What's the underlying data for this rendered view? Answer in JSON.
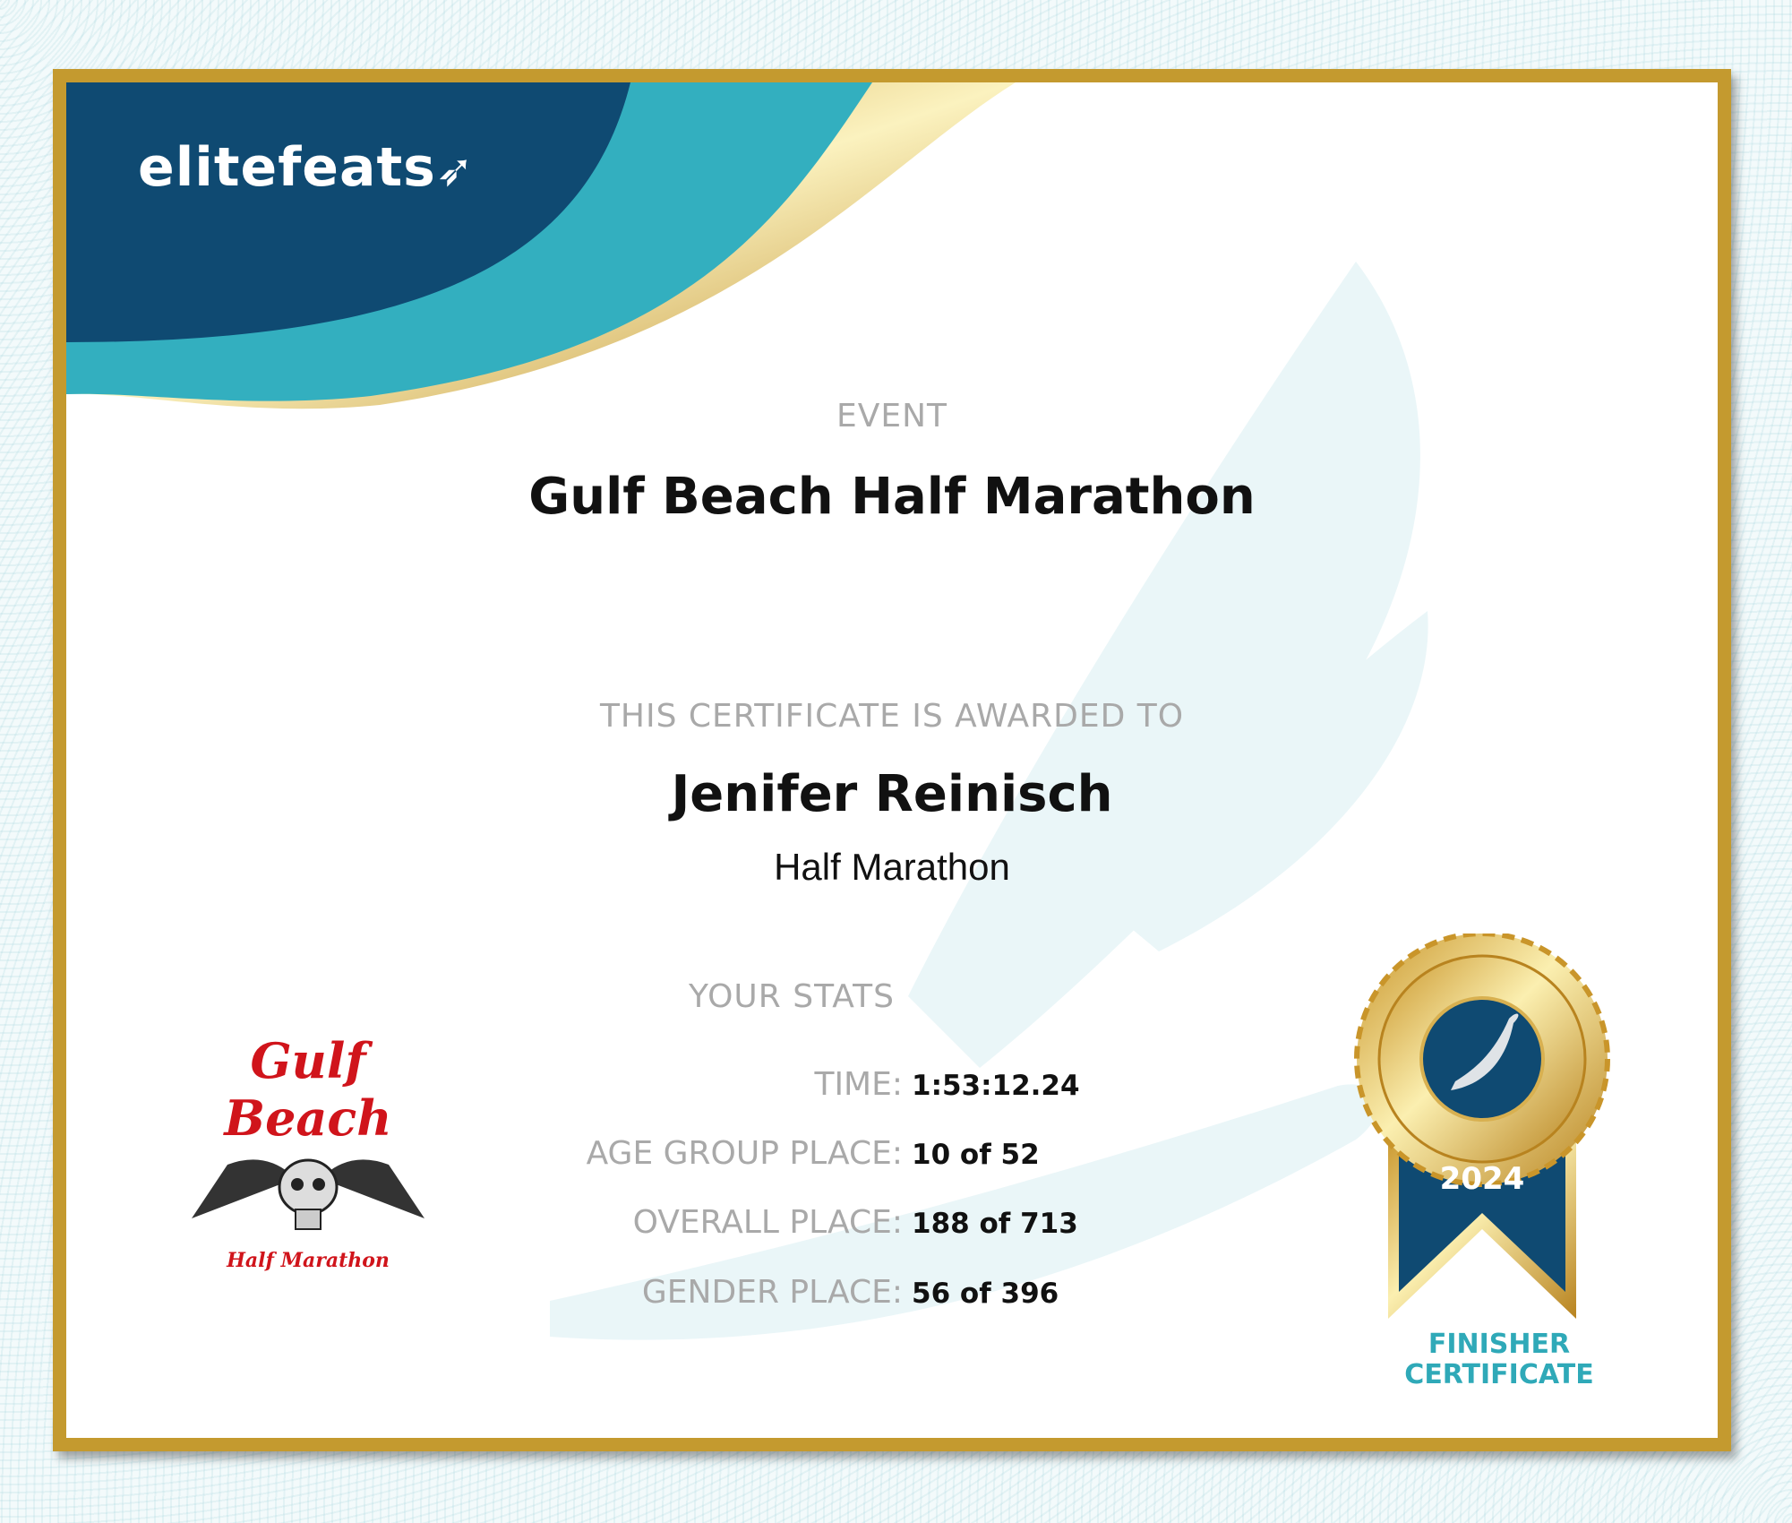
{
  "brand": {
    "name": "elitefeats",
    "colors": {
      "navy": "#0f4a72",
      "teal": "#33afbf",
      "gold": "#c49a2f"
    }
  },
  "event": {
    "label": "EVENT",
    "name": "Gulf Beach Half Marathon"
  },
  "award": {
    "label": "THIS CERTIFICATE IS AWARDED TO",
    "name": "Jenifer Reinisch",
    "race": "Half Marathon"
  },
  "stats": {
    "title": "YOUR STATS",
    "rows": [
      {
        "label": "TIME:",
        "value": "1:53:12.24"
      },
      {
        "label": "AGE GROUP PLACE:",
        "value": "10 of 52"
      },
      {
        "label": "OVERALL PLACE:",
        "value": "188 of 713"
      },
      {
        "label": "GENDER PLACE:",
        "value": "56 of 396"
      }
    ]
  },
  "event_logo": {
    "title": "Gulf Beach",
    "subtitle": "Half Marathon"
  },
  "medal": {
    "year": "2024",
    "icon": "winged-foot-icon",
    "caption_line1": "FINISHER",
    "caption_line2": "CERTIFICATE"
  }
}
